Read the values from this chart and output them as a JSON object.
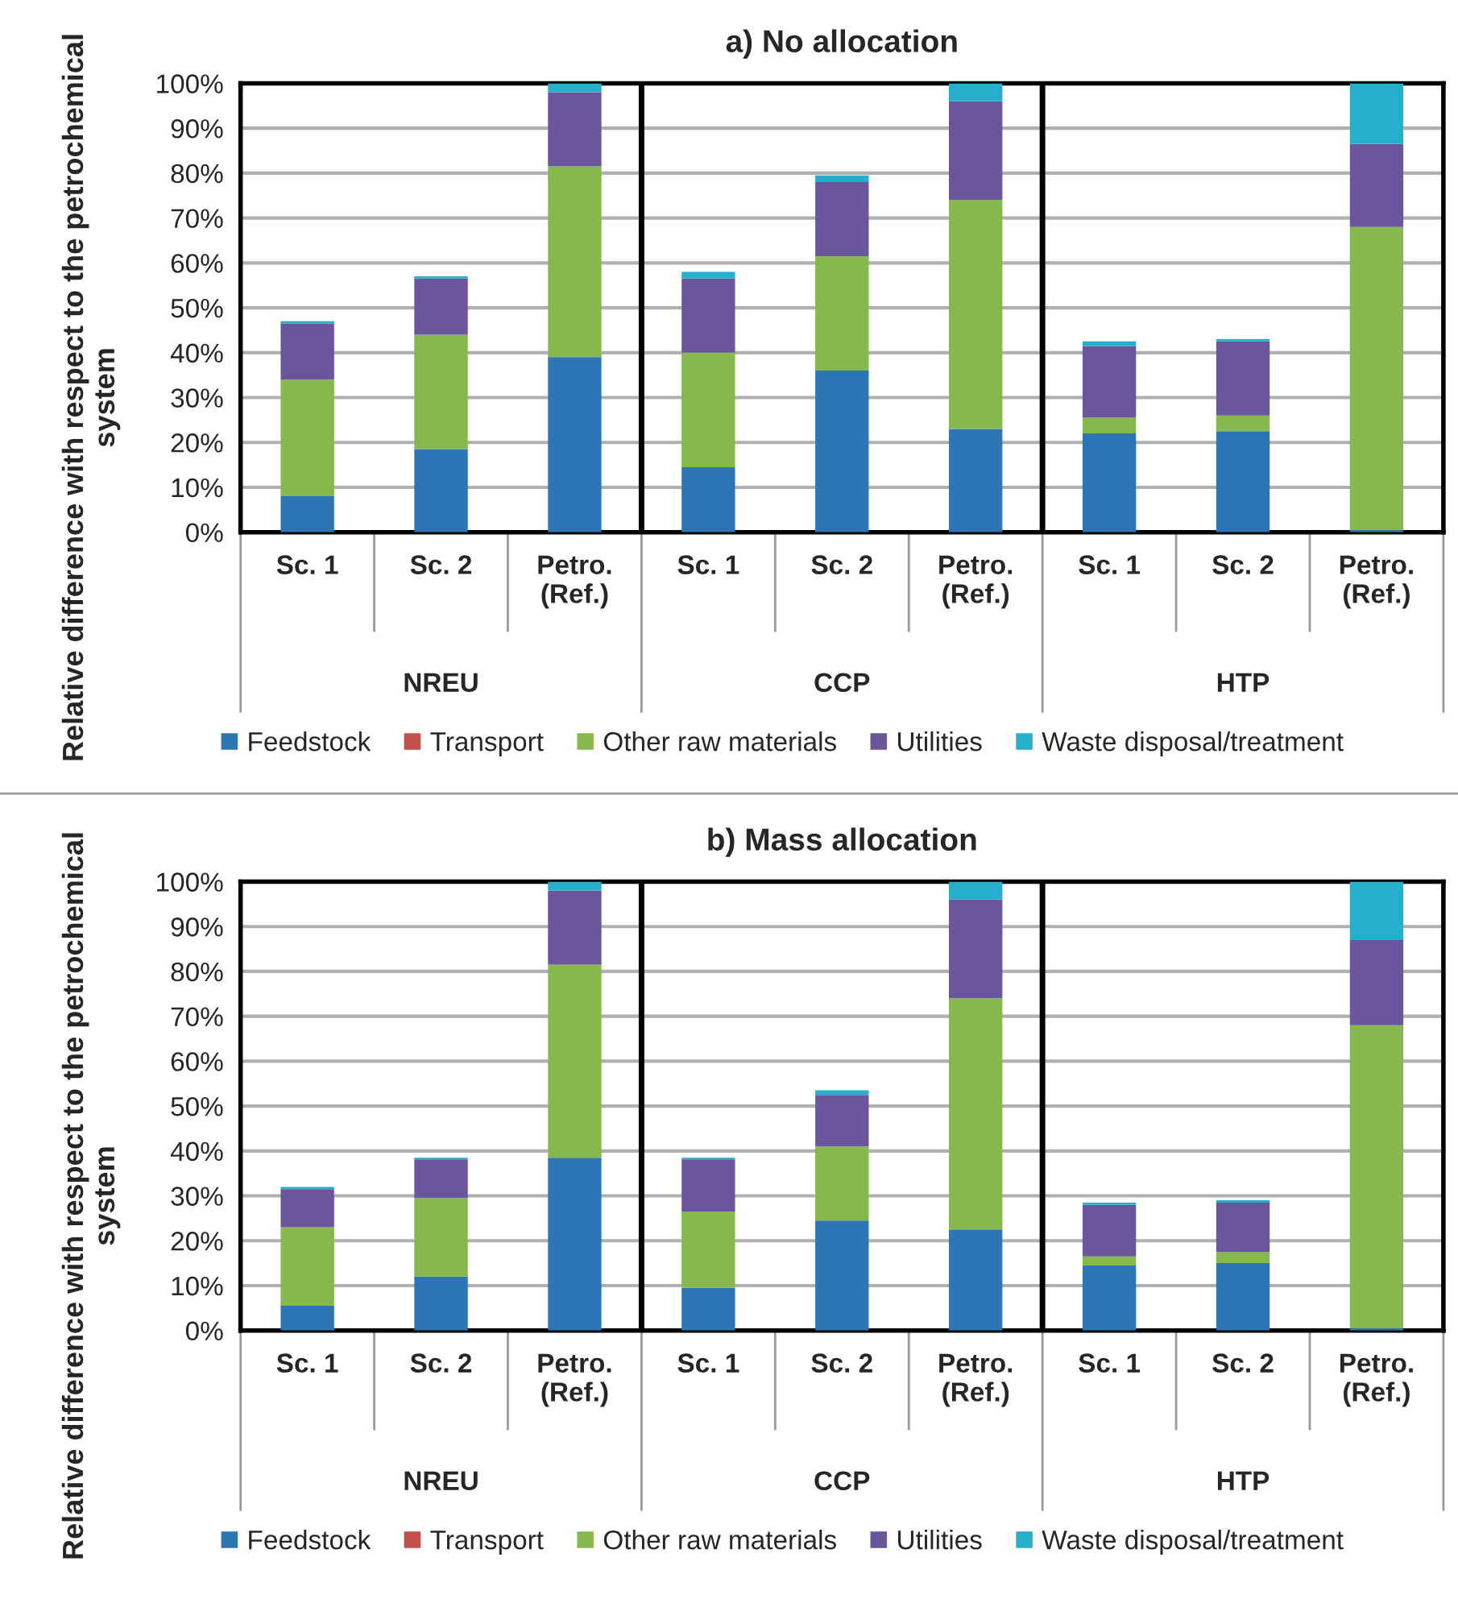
{
  "chart_data": [
    {
      "type": "bar",
      "title": "a) No allocation",
      "ylabel": "Relative difference with respect to the petrochemical system",
      "stacked": true,
      "categories": [
        "Sc. 1",
        "Sc. 2",
        "Petro.\n(Ref.)",
        "Sc. 1",
        "Sc. 2",
        "Petro.\n(Ref.)",
        "Sc. 1",
        "Sc. 2",
        "Petro.\n(Ref.)"
      ],
      "annotations": [
        "NREU",
        "CCP",
        "HTP"
      ],
      "series": [
        {
          "name": "Feedstock",
          "color": "#2e75b6",
          "values": [
            8,
            18.5,
            39,
            14.5,
            36,
            23,
            22,
            22.5,
            0.5
          ]
        },
        {
          "name": "Transport",
          "color": "#c0504d",
          "values": [
            0,
            0,
            0,
            0,
            0,
            0,
            0,
            0,
            0
          ]
        },
        {
          "name": "Other raw materials",
          "color": "#86b84e",
          "values": [
            26,
            25.5,
            42.5,
            25.5,
            25.5,
            51,
            3.5,
            3.5,
            67.5
          ]
        },
        {
          "name": "Utilities",
          "color": "#6b559b",
          "values": [
            12.5,
            12.5,
            16.5,
            16.5,
            16.5,
            22,
            16,
            16.5,
            18.5
          ]
        },
        {
          "name": "Waste disposal/treatment",
          "color": "#27aecd",
          "values": [
            0.5,
            0.5,
            2,
            1.5,
            1.5,
            4,
            1,
            0.5,
            13.5
          ]
        }
      ],
      "ylim": [
        0,
        100
      ],
      "yticks": [
        {
          "value": 0,
          "label": "0%"
        },
        {
          "value": 10,
          "label": "10%"
        },
        {
          "value": 20,
          "label": "20%"
        },
        {
          "value": 30,
          "label": "30%"
        },
        {
          "value": 40,
          "label": "40%"
        },
        {
          "value": 50,
          "label": "50%"
        },
        {
          "value": 60,
          "label": "60%"
        },
        {
          "value": 70,
          "label": "70%"
        },
        {
          "value": 80,
          "label": "80%"
        },
        {
          "value": 90,
          "label": "90%"
        },
        {
          "value": 100,
          "label": "100%"
        }
      ],
      "grid": "y",
      "legend": "bottom"
    },
    {
      "type": "bar",
      "title": "b) Mass allocation",
      "ylabel": "Relative difference with respect to the petrochemical system",
      "stacked": true,
      "categories": [
        "Sc. 1",
        "Sc. 2",
        "Petro.\n(Ref.)",
        "Sc. 1",
        "Sc. 2",
        "Petro.\n(Ref.)",
        "Sc. 1",
        "Sc. 2",
        "Petro.\n(Ref.)"
      ],
      "annotations": [
        "NREU",
        "CCP",
        "HTP"
      ],
      "series": [
        {
          "name": "Feedstock",
          "color": "#2e75b6",
          "values": [
            5.5,
            12,
            38.5,
            9.5,
            24.5,
            22.5,
            14.5,
            15,
            0.5
          ]
        },
        {
          "name": "Transport",
          "color": "#c0504d",
          "values": [
            0,
            0,
            0,
            0,
            0,
            0,
            0,
            0,
            0
          ]
        },
        {
          "name": "Other raw materials",
          "color": "#86b84e",
          "values": [
            17.5,
            17.5,
            43,
            17,
            16.5,
            51.5,
            2,
            2.5,
            67.5
          ]
        },
        {
          "name": "Utilities",
          "color": "#6b559b",
          "values": [
            8.5,
            8.5,
            16.5,
            11.5,
            11.5,
            22,
            11.5,
            11,
            19
          ]
        },
        {
          "name": "Waste disposal/treatment",
          "color": "#27aecd",
          "values": [
            0.5,
            0.5,
            2,
            0.5,
            1,
            4,
            0.5,
            0.5,
            13
          ]
        }
      ],
      "ylim": [
        0,
        100
      ],
      "yticks": [
        {
          "value": 0,
          "label": "0%"
        },
        {
          "value": 10,
          "label": "10%"
        },
        {
          "value": 20,
          "label": "20%"
        },
        {
          "value": 30,
          "label": "30%"
        },
        {
          "value": 40,
          "label": "40%"
        },
        {
          "value": 50,
          "label": "50%"
        },
        {
          "value": 60,
          "label": "60%"
        },
        {
          "value": 70,
          "label": "70%"
        },
        {
          "value": 80,
          "label": "80%"
        },
        {
          "value": 90,
          "label": "90%"
        },
        {
          "value": 100,
          "label": "100%"
        }
      ],
      "grid": "y",
      "legend": "bottom"
    }
  ]
}
